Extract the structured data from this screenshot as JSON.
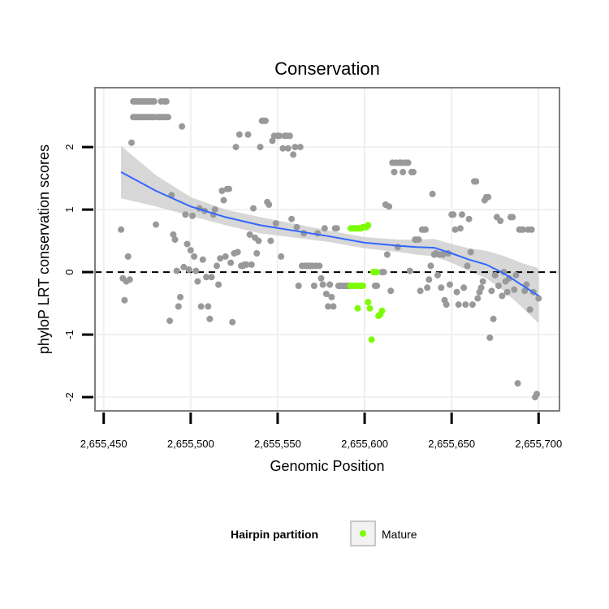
{
  "chart_data": {
    "type": "scatter",
    "title": "Conservation",
    "xlabel": "Genomic Position",
    "ylabel": "phyloP LRT conservation scores",
    "xlim": [
      2655445,
      2655712
    ],
    "ylim": [
      -2.22,
      2.95
    ],
    "x_ticks": [
      {
        "value": 2655450,
        "label": "2,655,450"
      },
      {
        "value": 2655500,
        "label": "2,655,500"
      },
      {
        "value": 2655550,
        "label": "2,655,550"
      },
      {
        "value": 2655600,
        "label": "2,655,600"
      },
      {
        "value": 2655650,
        "label": "2,655,650"
      },
      {
        "value": 2655700,
        "label": "2,655,700"
      }
    ],
    "y_ticks": [
      {
        "value": -2,
        "label": "-2"
      },
      {
        "value": -1,
        "label": "-1"
      },
      {
        "value": 0,
        "label": "0"
      },
      {
        "value": 1,
        "label": "1"
      },
      {
        "value": 2,
        "label": "2"
      }
    ],
    "reference_line": {
      "y": 0,
      "style": "dashed"
    },
    "legend": {
      "title": "Hairpin partition",
      "entries": [
        {
          "label": "Mature",
          "color": "#7cfc00"
        }
      ],
      "position": "bottom"
    },
    "colors": {
      "other": "#999999",
      "mature": "#7cfc00",
      "smooth": "#3366ff",
      "band": "#bdbdbd",
      "grid": "#f0f0f0",
      "border": "#7f7f7f"
    },
    "series": [
      {
        "name": "Other",
        "points": [
          [
            2655460,
            0.68
          ],
          [
            2655461,
            -0.1
          ],
          [
            2655462,
            -0.45
          ],
          [
            2655463,
            -0.15
          ],
          [
            2655464,
            0.25
          ],
          [
            2655465,
            -0.12
          ],
          [
            2655466,
            2.07
          ],
          [
            2655467,
            2.73
          ],
          [
            2655467,
            2.48
          ],
          [
            2655468,
            2.73
          ],
          [
            2655468,
            2.48
          ],
          [
            2655469,
            2.73
          ],
          [
            2655469,
            2.48
          ],
          [
            2655470,
            2.73
          ],
          [
            2655470,
            2.48
          ],
          [
            2655471,
            2.73
          ],
          [
            2655471,
            2.48
          ],
          [
            2655472,
            2.73
          ],
          [
            2655472,
            2.48
          ],
          [
            2655473,
            2.73
          ],
          [
            2655473,
            2.48
          ],
          [
            2655474,
            2.73
          ],
          [
            2655474,
            2.48
          ],
          [
            2655475,
            2.73
          ],
          [
            2655475,
            2.48
          ],
          [
            2655476,
            2.73
          ],
          [
            2655476,
            2.48
          ],
          [
            2655477,
            2.73
          ],
          [
            2655477,
            2.48
          ],
          [
            2655478,
            2.73
          ],
          [
            2655478,
            2.48
          ],
          [
            2655479,
            2.73
          ],
          [
            2655479,
            2.48
          ],
          [
            2655480,
            0.76
          ],
          [
            2655481,
            2.48
          ],
          [
            2655482,
            2.48
          ],
          [
            2655483,
            2.73
          ],
          [
            2655483,
            2.48
          ],
          [
            2655484,
            2.48
          ],
          [
            2655485,
            2.73
          ],
          [
            2655485,
            2.48
          ],
          [
            2655486,
            2.73
          ],
          [
            2655486,
            2.48
          ],
          [
            2655487,
            2.48
          ],
          [
            2655488,
            -0.78
          ],
          [
            2655489,
            1.23
          ],
          [
            2655490,
            0.6
          ],
          [
            2655491,
            0.52
          ],
          [
            2655492,
            0.02
          ],
          [
            2655493,
            -0.55
          ],
          [
            2655494,
            -0.4
          ],
          [
            2655495,
            2.33
          ],
          [
            2655496,
            0.08
          ],
          [
            2655497,
            0.92
          ],
          [
            2655498,
            0.45
          ],
          [
            2655499,
            0.04
          ],
          [
            2655500,
            0.35
          ],
          [
            2655501,
            0.9
          ],
          [
            2655502,
            0.25
          ],
          [
            2655503,
            0.02
          ],
          [
            2655504,
            -0.15
          ],
          [
            2655505,
            1.02
          ],
          [
            2655506,
            -0.55
          ],
          [
            2655507,
            0.2
          ],
          [
            2655508,
            0.98
          ],
          [
            2655509,
            -0.08
          ],
          [
            2655510,
            -0.55
          ],
          [
            2655511,
            -0.75
          ],
          [
            2655512,
            -0.08
          ],
          [
            2655513,
            0.92
          ],
          [
            2655514,
            1.0
          ],
          [
            2655515,
            0.1
          ],
          [
            2655516,
            -0.2
          ],
          [
            2655517,
            0.22
          ],
          [
            2655518,
            1.3
          ],
          [
            2655519,
            1.15
          ],
          [
            2655520,
            0.25
          ],
          [
            2655521,
            1.33
          ],
          [
            2655522,
            1.33
          ],
          [
            2655523,
            0.15
          ],
          [
            2655524,
            -0.8
          ],
          [
            2655525,
            0.3
          ],
          [
            2655526,
            2.0
          ],
          [
            2655527,
            0.32
          ],
          [
            2655528,
            2.2
          ],
          [
            2655529,
            0.1
          ],
          [
            2655530,
            0.1
          ],
          [
            2655531,
            0.12
          ],
          [
            2655532,
            0.12
          ],
          [
            2655533,
            2.2
          ],
          [
            2655534,
            0.6
          ],
          [
            2655535,
            0.12
          ],
          [
            2655536,
            1.02
          ],
          [
            2655537,
            0.55
          ],
          [
            2655538,
            0.3
          ],
          [
            2655539,
            0.5
          ],
          [
            2655540,
            2.0
          ],
          [
            2655541,
            2.42
          ],
          [
            2655542,
            2.42
          ],
          [
            2655543,
            2.42
          ],
          [
            2655544,
            1.12
          ],
          [
            2655545,
            1.08
          ],
          [
            2655546,
            0.5
          ],
          [
            2655547,
            2.1
          ],
          [
            2655548,
            2.18
          ],
          [
            2655549,
            0.78
          ],
          [
            2655550,
            2.18
          ],
          [
            2655551,
            2.18
          ],
          [
            2655552,
            0.25
          ],
          [
            2655553,
            1.98
          ],
          [
            2655554,
            2.18
          ],
          [
            2655555,
            2.18
          ],
          [
            2655556,
            1.98
          ],
          [
            2655557,
            2.18
          ],
          [
            2655558,
            0.85
          ],
          [
            2655559,
            1.88
          ],
          [
            2655560,
            2.0
          ],
          [
            2655561,
            0.72
          ],
          [
            2655562,
            -0.22
          ],
          [
            2655563,
            2.0
          ],
          [
            2655564,
            0.1
          ],
          [
            2655565,
            0.62
          ],
          [
            2655566,
            0.1
          ],
          [
            2655567,
            0.1
          ],
          [
            2655568,
            0.1
          ],
          [
            2655569,
            0.1
          ],
          [
            2655570,
            0.1
          ],
          [
            2655571,
            -0.22
          ],
          [
            2655572,
            0.1
          ],
          [
            2655573,
            0.62
          ],
          [
            2655574,
            0.1
          ],
          [
            2655575,
            -0.1
          ],
          [
            2655576,
            -0.2
          ],
          [
            2655577,
            0.7
          ],
          [
            2655578,
            -0.35
          ],
          [
            2655579,
            -0.55
          ],
          [
            2655580,
            -0.2
          ],
          [
            2655581,
            -0.4
          ],
          [
            2655582,
            -0.55
          ],
          [
            2655583,
            0.7
          ],
          [
            2655584,
            0.7
          ],
          [
            2655585,
            -0.22
          ],
          [
            2655586,
            -0.22
          ],
          [
            2655587,
            -0.22
          ],
          [
            2655588,
            -0.22
          ],
          [
            2655589,
            -0.22
          ],
          [
            2655590,
            -0.22
          ],
          [
            2655591,
            -0.22
          ],
          [
            2655606,
            -0.22
          ],
          [
            2655607,
            -0.22
          ],
          [
            2655610,
            0.0
          ],
          [
            2655611,
            0.0
          ],
          [
            2655612,
            1.08
          ],
          [
            2655613,
            0.28
          ],
          [
            2655614,
            1.05
          ],
          [
            2655615,
            -0.3
          ],
          [
            2655616,
            1.75
          ],
          [
            2655617,
            1.6
          ],
          [
            2655618,
            1.75
          ],
          [
            2655619,
            0.4
          ],
          [
            2655620,
            1.75
          ],
          [
            2655621,
            1.75
          ],
          [
            2655622,
            1.6
          ],
          [
            2655623,
            1.75
          ],
          [
            2655624,
            1.75
          ],
          [
            2655625,
            1.75
          ],
          [
            2655626,
            0.02
          ],
          [
            2655627,
            1.6
          ],
          [
            2655628,
            1.6
          ],
          [
            2655629,
            0.52
          ],
          [
            2655630,
            0.52
          ],
          [
            2655631,
            0.52
          ],
          [
            2655632,
            -0.3
          ],
          [
            2655633,
            0.68
          ],
          [
            2655634,
            0.68
          ],
          [
            2655635,
            0.68
          ],
          [
            2655636,
            -0.25
          ],
          [
            2655637,
            -0.12
          ],
          [
            2655638,
            0.1
          ],
          [
            2655639,
            1.25
          ],
          [
            2655640,
            0.28
          ],
          [
            2655641,
            0.3
          ],
          [
            2655642,
            -0.05
          ],
          [
            2655643,
            0.28
          ],
          [
            2655644,
            -0.25
          ],
          [
            2655645,
            0.28
          ],
          [
            2655646,
            -0.45
          ],
          [
            2655647,
            -0.52
          ],
          [
            2655648,
            0.3
          ],
          [
            2655649,
            -0.2
          ],
          [
            2655650,
            0.92
          ],
          [
            2655651,
            0.92
          ],
          [
            2655652,
            0.68
          ],
          [
            2655653,
            -0.32
          ],
          [
            2655654,
            -0.52
          ],
          [
            2655655,
            0.7
          ],
          [
            2655656,
            0.92
          ],
          [
            2655657,
            -0.25
          ],
          [
            2655658,
            -0.52
          ],
          [
            2655659,
            0.1
          ],
          [
            2655660,
            0.85
          ],
          [
            2655661,
            0.32
          ],
          [
            2655662,
            -0.52
          ],
          [
            2655663,
            1.45
          ],
          [
            2655664,
            1.45
          ],
          [
            2655665,
            -0.42
          ],
          [
            2655666,
            -0.32
          ],
          [
            2655667,
            -0.25
          ],
          [
            2655668,
            -0.15
          ],
          [
            2655669,
            1.15
          ],
          [
            2655670,
            1.2
          ],
          [
            2655671,
            1.2
          ],
          [
            2655672,
            -1.05
          ],
          [
            2655673,
            -0.3
          ],
          [
            2655674,
            -0.75
          ],
          [
            2655675,
            -0.05
          ],
          [
            2655676,
            0.88
          ],
          [
            2655677,
            -0.22
          ],
          [
            2655678,
            0.82
          ],
          [
            2655679,
            -0.38
          ],
          [
            2655680,
            0.0
          ],
          [
            2655681,
            -0.15
          ],
          [
            2655682,
            -0.32
          ],
          [
            2655683,
            -0.1
          ],
          [
            2655684,
            0.88
          ],
          [
            2655685,
            0.88
          ],
          [
            2655686,
            -0.28
          ],
          [
            2655687,
            -0.05
          ],
          [
            2655688,
            -1.78
          ],
          [
            2655689,
            0.68
          ],
          [
            2655690,
            0.68
          ],
          [
            2655691,
            0.68
          ],
          [
            2655692,
            -0.3
          ],
          [
            2655693,
            -0.2
          ],
          [
            2655694,
            0.68
          ],
          [
            2655695,
            -0.6
          ],
          [
            2655696,
            0.68
          ],
          [
            2655697,
            -0.32
          ],
          [
            2655698,
            -2.0
          ],
          [
            2655699,
            -1.95
          ],
          [
            2655700,
            -0.42
          ]
        ]
      },
      {
        "name": "Mature",
        "points": [
          [
            2655592,
            0.7
          ],
          [
            2655593,
            0.7
          ],
          [
            2655594,
            0.7
          ],
          [
            2655595,
            0.7
          ],
          [
            2655596,
            0.7
          ],
          [
            2655597,
            0.7
          ],
          [
            2655598,
            0.7
          ],
          [
            2655599,
            0.72
          ],
          [
            2655600,
            0.72
          ],
          [
            2655601,
            0.72
          ],
          [
            2655602,
            0.75
          ],
          [
            2655592,
            -0.22
          ],
          [
            2655593,
            -0.22
          ],
          [
            2655594,
            -0.22
          ],
          [
            2655595,
            -0.22
          ],
          [
            2655596,
            -0.58
          ],
          [
            2655597,
            -0.22
          ],
          [
            2655598,
            -0.22
          ],
          [
            2655599,
            -0.22
          ],
          [
            2655602,
            -0.48
          ],
          [
            2655603,
            -0.58
          ],
          [
            2655604,
            -1.08
          ],
          [
            2655605,
            0.0
          ],
          [
            2655606,
            0.0
          ],
          [
            2655607,
            0.0
          ],
          [
            2655608,
            -0.7
          ],
          [
            2655609,
            -0.68
          ],
          [
            2655610,
            -0.62
          ]
        ]
      }
    ],
    "smooth": {
      "x": [
        2655460,
        2655480,
        2655500,
        2655520,
        2655540,
        2655560,
        2655580,
        2655600,
        2655620,
        2655630,
        2655640,
        2655650,
        2655660,
        2655670,
        2655680,
        2655690,
        2655700
      ],
      "y": [
        1.6,
        1.3,
        1.05,
        0.88,
        0.75,
        0.66,
        0.57,
        0.47,
        0.42,
        0.4,
        0.39,
        0.3,
        0.2,
        0.12,
        -0.02,
        -0.2,
        -0.38
      ],
      "lower": [
        1.18,
        1.05,
        0.9,
        0.75,
        0.62,
        0.55,
        0.48,
        0.38,
        0.32,
        0.28,
        0.25,
        0.15,
        0.02,
        -0.1,
        -0.3,
        -0.55,
        -0.82
      ],
      "upper": [
        2.02,
        1.55,
        1.2,
        1.0,
        0.88,
        0.77,
        0.66,
        0.56,
        0.52,
        0.52,
        0.53,
        0.45,
        0.38,
        0.34,
        0.26,
        0.15,
        0.06
      ]
    }
  }
}
